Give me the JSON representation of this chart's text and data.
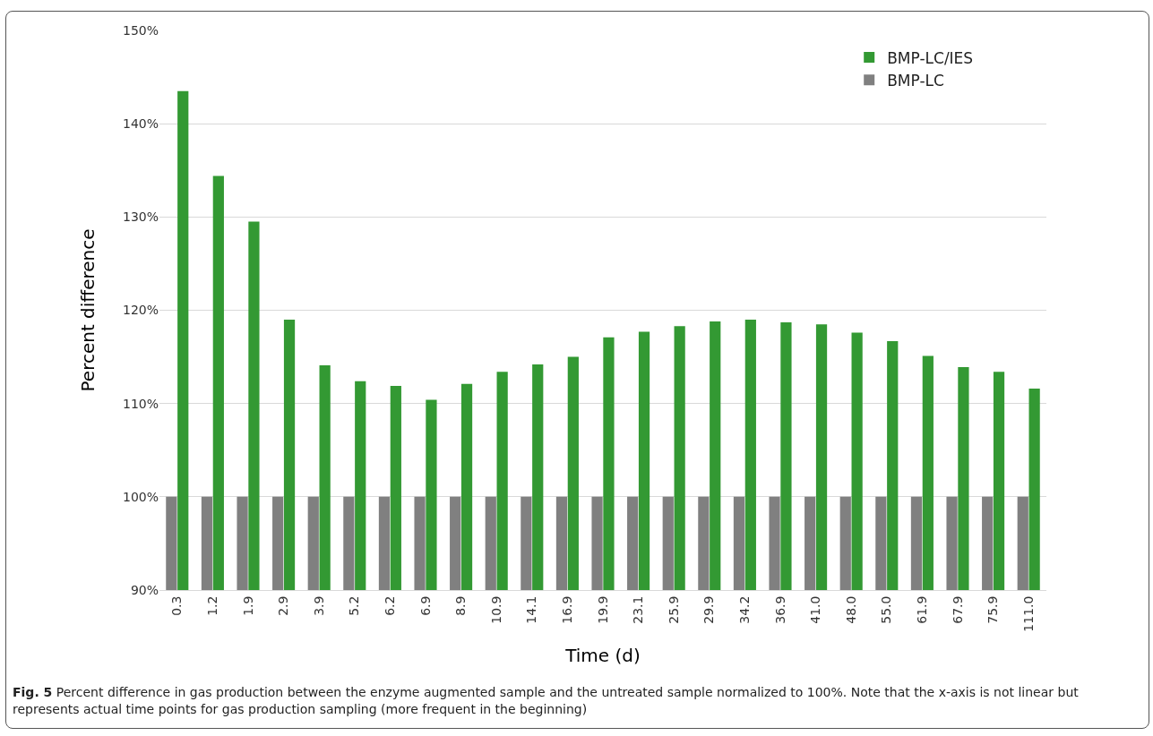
{
  "chart_data": {
    "type": "bar",
    "xlabel": "Time (d)",
    "ylabel": "Percent difference",
    "categories": [
      "0.3",
      "1.2",
      "1.9",
      "2.9",
      "3.9",
      "5.2",
      "6.2",
      "6.9",
      "8.9",
      "10.9",
      "14.1",
      "16.9",
      "19.9",
      "23.1",
      "25.9",
      "29.9",
      "34.2",
      "36.9",
      "41.0",
      "48.0",
      "55.0",
      "61.9",
      "67.9",
      "75.9",
      "111.0"
    ],
    "series": [
      {
        "name": "BMP-LC",
        "color": "#808080",
        "values": [
          100,
          100,
          100,
          100,
          100,
          100,
          100,
          100,
          100,
          100,
          100,
          100,
          100,
          100,
          100,
          100,
          100,
          100,
          100,
          100,
          100,
          100,
          100,
          100,
          100
        ]
      },
      {
        "name": "BMP-LC/IES",
        "color": "#339933",
        "values": [
          143.5,
          134.4,
          129.5,
          119.0,
          114.1,
          112.4,
          111.9,
          110.4,
          112.1,
          113.4,
          114.2,
          115.0,
          117.1,
          117.7,
          118.3,
          118.8,
          119.0,
          118.7,
          118.5,
          117.6,
          116.7,
          115.1,
          113.9,
          113.4,
          111.6
        ]
      }
    ],
    "ylim": [
      90,
      150
    ],
    "yticks": [
      {
        "value": 90,
        "label": "90%"
      },
      {
        "value": 100,
        "label": "100%"
      },
      {
        "value": 110,
        "label": "110%"
      },
      {
        "value": 120,
        "label": "120%"
      },
      {
        "value": 130,
        "label": "130%"
      },
      {
        "value": 140,
        "label": "140%"
      },
      {
        "value": 150,
        "label": "150%"
      }
    ],
    "grid": "y",
    "legend": "top right",
    "annotations": [
      "**Fig. 5** Percent difference in gas production between the enzyme augmented sample and the untreated sample normalized to 100%. Note that the x-axis is not linear but represents actual time points for gas production sampling (more frequent in the beginning)"
    ]
  }
}
